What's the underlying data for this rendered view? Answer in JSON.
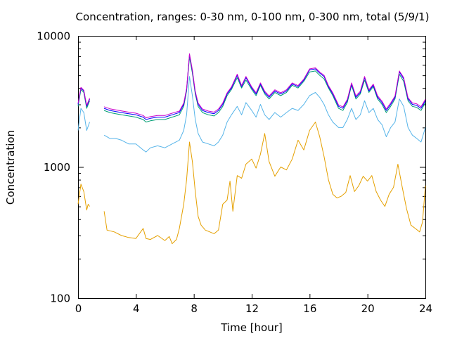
{
  "chart_data": {
    "type": "line",
    "title": "Concentration, ranges: 0-30 nm, 0-100 nm, 0-300 nm, total (5/9/1)",
    "xlabel": "Time [hour]",
    "ylabel": "Concentration",
    "xlim": [
      0,
      24
    ],
    "ylim": [
      100,
      10000
    ],
    "yscale": "log",
    "grid": false,
    "legend": "none",
    "x_ticks": [
      0,
      4,
      8,
      12,
      16,
      20,
      24
    ],
    "x_tick_labels": [
      "0",
      "4",
      "8",
      "12",
      "16",
      "20",
      "24"
    ],
    "y_ticks": [
      100,
      1000,
      10000
    ],
    "y_tick_labels": [
      "100",
      "1000",
      "10000"
    ],
    "series": [
      {
        "color": "#e5a000",
        "x": [
          0,
          0.2,
          0.4,
          0.6,
          0.7,
          0.8,
          1.8,
          2.0,
          2.5,
          3.0,
          3.5,
          4.0,
          4.5,
          4.7,
          5.0,
          5.5,
          6.0,
          6.3,
          6.5,
          6.8,
          7.0,
          7.3,
          7.5,
          7.7,
          7.9,
          8.1,
          8.3,
          8.5,
          8.8,
          9.1,
          9.4,
          9.7,
          10.0,
          10.3,
          10.5,
          10.7,
          11.0,
          11.3,
          11.6,
          12.0,
          12.3,
          12.6,
          12.9,
          13.2,
          13.6,
          14.0,
          14.4,
          14.8,
          15.2,
          15.6,
          16.0,
          16.4,
          16.7,
          17.0,
          17.3,
          17.6,
          17.9,
          18.2,
          18.5,
          18.8,
          19.1,
          19.4,
          19.7,
          20.0,
          20.3,
          20.6,
          20.9,
          21.2,
          21.5,
          21.8,
          22.1,
          22.4,
          22.7,
          23.0,
          23.3,
          23.6,
          23.8,
          24.0
        ],
        "values": [
          520,
          740,
          650,
          470,
          520,
          500,
          460,
          330,
          320,
          300,
          290,
          285,
          340,
          285,
          280,
          300,
          275,
          295,
          260,
          280,
          340,
          520,
          800,
          1550,
          1100,
          650,
          420,
          360,
          330,
          320,
          310,
          330,
          520,
          560,
          780,
          460,
          860,
          820,
          1050,
          1150,
          980,
          1250,
          1800,
          1100,
          850,
          1000,
          950,
          1150,
          1600,
          1350,
          1900,
          2200,
          1700,
          1200,
          800,
          620,
          580,
          600,
          640,
          860,
          650,
          720,
          850,
          780,
          860,
          650,
          560,
          500,
          620,
          700,
          1050,
          700,
          480,
          360,
          340,
          320,
          380,
          720
        ]
      },
      {
        "color": "#56b4e9",
        "x": [
          0,
          0.2,
          0.4,
          0.6,
          0.8,
          1.8,
          2.2,
          2.6,
          3.0,
          3.5,
          4.0,
          4.5,
          4.7,
          5.0,
          5.5,
          6.0,
          6.5,
          7.0,
          7.3,
          7.5,
          7.7,
          7.9,
          8.1,
          8.3,
          8.6,
          9.0,
          9.4,
          9.7,
          10.0,
          10.3,
          10.6,
          11.0,
          11.3,
          11.6,
          12.0,
          12.3,
          12.6,
          12.9,
          13.2,
          13.6,
          14.0,
          14.4,
          14.8,
          15.2,
          15.6,
          16.0,
          16.4,
          16.7,
          17.0,
          17.3,
          17.6,
          18.0,
          18.3,
          18.6,
          18.9,
          19.2,
          19.5,
          19.8,
          20.1,
          20.4,
          20.7,
          21.0,
          21.3,
          21.6,
          21.9,
          22.2,
          22.5,
          22.8,
          23.1,
          23.4,
          23.7,
          24.0
        ],
        "values": [
          1900,
          2800,
          2600,
          1900,
          2200,
          1750,
          1650,
          1650,
          1600,
          1500,
          1500,
          1350,
          1300,
          1400,
          1450,
          1400,
          1500,
          1600,
          1900,
          2500,
          4900,
          3500,
          2300,
          1800,
          1550,
          1500,
          1450,
          1550,
          1750,
          2200,
          2500,
          2900,
          2500,
          3100,
          2700,
          2400,
          3000,
          2500,
          2300,
          2600,
          2400,
          2600,
          2800,
          2700,
          3000,
          3500,
          3700,
          3400,
          3000,
          2500,
          2200,
          2000,
          2000,
          2300,
          2800,
          2300,
          2500,
          3200,
          2600,
          2800,
          2300,
          2100,
          1700,
          2000,
          2200,
          3300,
          2900,
          2000,
          1750,
          1650,
          1550,
          2000
        ]
      },
      {
        "color": "#009e73",
        "x": [
          0,
          0.2,
          0.4,
          0.6,
          0.8,
          1.8,
          2.2,
          2.6,
          3.0,
          3.5,
          4.0,
          4.5,
          4.7,
          5.0,
          5.5,
          6.0,
          6.5,
          7.0,
          7.3,
          7.5,
          7.7,
          7.9,
          8.1,
          8.3,
          8.6,
          9.0,
          9.4,
          9.7,
          10.0,
          10.3,
          10.6,
          11.0,
          11.3,
          11.6,
          12.0,
          12.3,
          12.6,
          12.9,
          13.2,
          13.6,
          14.0,
          14.4,
          14.8,
          15.2,
          15.6,
          16.0,
          16.4,
          16.7,
          17.0,
          17.3,
          17.6,
          18.0,
          18.3,
          18.6,
          18.9,
          19.2,
          19.5,
          19.8,
          20.1,
          20.4,
          20.7,
          21.0,
          21.3,
          21.6,
          21.9,
          22.2,
          22.5,
          22.8,
          23.1,
          23.4,
          23.7,
          24.0
        ],
        "values": [
          2900,
          3900,
          3700,
          2800,
          3200,
          2700,
          2600,
          2550,
          2500,
          2450,
          2400,
          2300,
          2200,
          2250,
          2300,
          2300,
          2400,
          2500,
          2900,
          3800,
          6900,
          5200,
          3600,
          2900,
          2600,
          2500,
          2450,
          2600,
          2900,
          3500,
          3900,
          4800,
          4000,
          4600,
          3900,
          3500,
          4200,
          3600,
          3300,
          3700,
          3500,
          3700,
          4200,
          4000,
          4500,
          5300,
          5400,
          5000,
          4700,
          4000,
          3500,
          2800,
          2700,
          3100,
          4200,
          3300,
          3600,
          4600,
          3700,
          4100,
          3300,
          3000,
          2600,
          2900,
          3300,
          5100,
          4500,
          3200,
          2900,
          2850,
          2700,
          3100
        ]
      },
      {
        "color": "#0000ff",
        "x": [
          0,
          0.2,
          0.4,
          0.6,
          0.8,
          1.8,
          2.2,
          2.6,
          3.0,
          3.5,
          4.0,
          4.5,
          4.7,
          5.0,
          5.5,
          6.0,
          6.5,
          7.0,
          7.3,
          7.5,
          7.7,
          7.9,
          8.1,
          8.3,
          8.6,
          9.0,
          9.4,
          9.7,
          10.0,
          10.3,
          10.6,
          11.0,
          11.3,
          11.6,
          12.0,
          12.3,
          12.6,
          12.9,
          13.2,
          13.6,
          14.0,
          14.4,
          14.8,
          15.2,
          15.6,
          16.0,
          16.4,
          16.7,
          17.0,
          17.3,
          17.6,
          18.0,
          18.3,
          18.6,
          18.9,
          19.2,
          19.5,
          19.8,
          20.1,
          20.4,
          20.7,
          21.0,
          21.3,
          21.6,
          21.9,
          22.2,
          22.5,
          22.8,
          23.1,
          23.4,
          23.7,
          24.0
        ],
        "values": [
          3000,
          4000,
          3800,
          2900,
          3300,
          2800,
          2700,
          2650,
          2600,
          2550,
          2500,
          2400,
          2300,
          2350,
          2400,
          2400,
          2500,
          2600,
          3000,
          3900,
          7200,
          5400,
          3700,
          3000,
          2700,
          2600,
          2550,
          2700,
          3000,
          3600,
          4000,
          5000,
          4100,
          4800,
          4000,
          3600,
          4300,
          3700,
          3400,
          3800,
          3600,
          3800,
          4300,
          4100,
          4600,
          5500,
          5600,
          5200,
          4900,
          4100,
          3600,
          2900,
          2800,
          3200,
          4300,
          3400,
          3700,
          4800,
          3800,
          4200,
          3400,
          3100,
          2700,
          3000,
          3400,
          5300,
          4700,
          3300,
          3000,
          2950,
          2800,
          3200
        ]
      },
      {
        "color": "#cc00cc",
        "x": [
          0,
          0.2,
          0.4,
          0.6,
          0.8,
          1.8,
          2.2,
          2.6,
          3.0,
          3.5,
          4.0,
          4.5,
          4.7,
          5.0,
          5.5,
          6.0,
          6.5,
          7.0,
          7.3,
          7.5,
          7.7,
          7.9,
          8.1,
          8.3,
          8.6,
          9.0,
          9.4,
          9.7,
          10.0,
          10.3,
          10.6,
          11.0,
          11.3,
          11.6,
          12.0,
          12.3,
          12.6,
          12.9,
          13.2,
          13.6,
          14.0,
          14.4,
          14.8,
          15.2,
          15.6,
          16.0,
          16.4,
          16.7,
          17.0,
          17.3,
          17.6,
          18.0,
          18.3,
          18.6,
          18.9,
          19.2,
          19.5,
          19.8,
          20.1,
          20.4,
          20.7,
          21.0,
          21.3,
          21.6,
          21.9,
          22.2,
          22.5,
          22.8,
          23.1,
          23.4,
          23.7,
          24.0
        ],
        "values": [
          3050,
          4050,
          3850,
          2950,
          3350,
          2880,
          2780,
          2730,
          2680,
          2620,
          2570,
          2470,
          2370,
          2420,
          2470,
          2470,
          2570,
          2670,
          3070,
          3970,
          7300,
          5500,
          3780,
          3070,
          2770,
          2670,
          2620,
          2770,
          3070,
          3680,
          4080,
          5100,
          4180,
          4900,
          4080,
          3680,
          4380,
          3780,
          3480,
          3880,
          3680,
          3880,
          4380,
          4180,
          4680,
          5600,
          5700,
          5300,
          5000,
          4180,
          3680,
          2970,
          2870,
          3270,
          4380,
          3480,
          3780,
          4900,
          3880,
          4280,
          3480,
          3180,
          2770,
          3070,
          3480,
          5400,
          4800,
          3380,
          3080,
          3030,
          2880,
          3280
        ]
      }
    ]
  }
}
